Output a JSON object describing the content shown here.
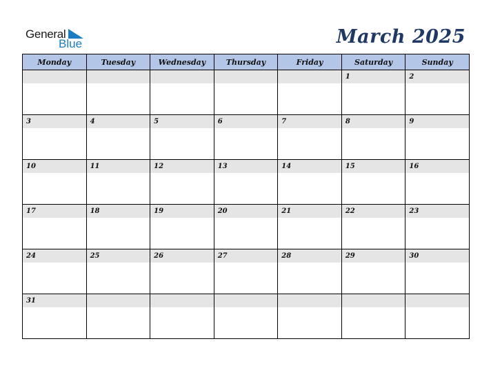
{
  "logo": {
    "word1": "General",
    "word2": "Blue",
    "accent": "#1a7cc2"
  },
  "title": "March 2025",
  "colors": {
    "header_bg": "#b4c6e7",
    "band_bg": "#e5e5e5",
    "title": "#1f3864"
  },
  "weekdays": [
    "Monday",
    "Tuesday",
    "Wednesday",
    "Thursday",
    "Friday",
    "Saturday",
    "Sunday"
  ],
  "weeks": [
    [
      "",
      "",
      "",
      "",
      "",
      "1",
      "2"
    ],
    [
      "3",
      "4",
      "5",
      "6",
      "7",
      "8",
      "9"
    ],
    [
      "10",
      "11",
      "12",
      "13",
      "14",
      "15",
      "16"
    ],
    [
      "17",
      "18",
      "19",
      "20",
      "21",
      "22",
      "23"
    ],
    [
      "24",
      "25",
      "26",
      "27",
      "28",
      "29",
      "30"
    ],
    [
      "31",
      "",
      "",
      "",
      "",
      "",
      ""
    ]
  ]
}
